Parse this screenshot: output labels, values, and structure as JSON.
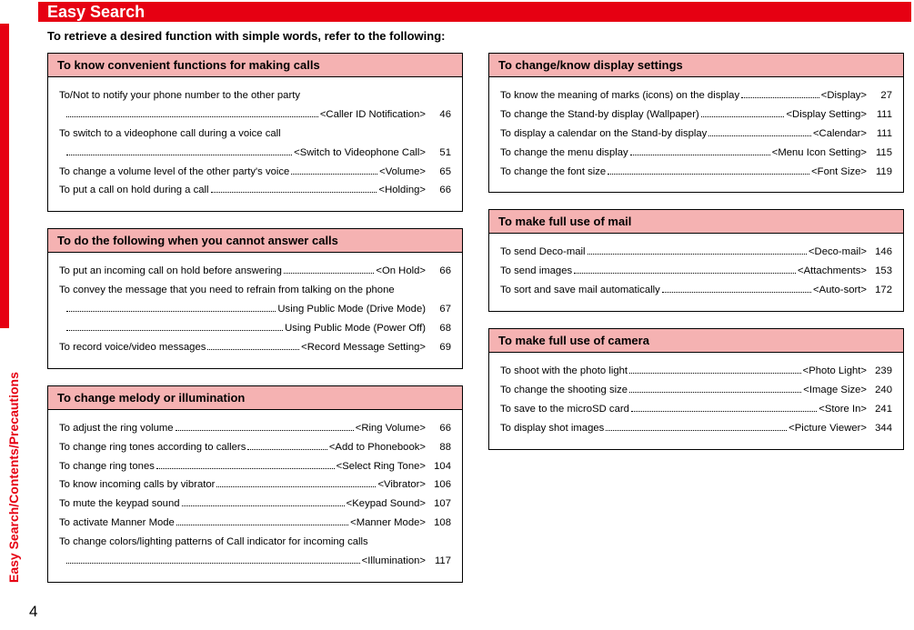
{
  "header": "Easy Search",
  "side_label": "Easy Search/Contents/Precautions",
  "intro": "To retrieve a desired function with simple words, refer to the following:",
  "page_number": "4",
  "colors": {
    "accent_red": "#e60012",
    "section_head_bg": "#f5b2b2",
    "border": "#000000",
    "bg": "#ffffff"
  },
  "sections": {
    "calls": {
      "title": "To know convenient functions for making calls",
      "rows": [
        {
          "text": "To/Not to notify your phone number to the other party",
          "ref": "",
          "page": "",
          "wrap": true
        },
        {
          "text": "",
          "ref": "<Caller ID Notification>",
          "page": "46",
          "cont": true
        },
        {
          "text": "To switch to a videophone call during a voice call",
          "ref": "",
          "page": "",
          "wrap": true
        },
        {
          "text": "",
          "ref": "<Switch to Videophone Call>",
          "page": "51",
          "cont": true
        },
        {
          "text": "To change a volume level of the other party's voice",
          "ref": "<Volume>",
          "page": "65"
        },
        {
          "text": "To put a call on hold during a call",
          "ref": "<Holding>",
          "page": "66"
        }
      ]
    },
    "cannot_answer": {
      "title": "To do the following when you cannot answer calls",
      "rows": [
        {
          "text": "To put an incoming call on hold before answering",
          "ref": "<On Hold>",
          "page": "66"
        },
        {
          "text": "To convey the message that you need to refrain from talking on the phone",
          "ref": "",
          "page": "",
          "wrap": true
        },
        {
          "text": "",
          "ref": "Using Public Mode (Drive Mode)",
          "page": "67",
          "cont": true
        },
        {
          "text": "",
          "ref": "Using Public Mode (Power Off)",
          "page": "68",
          "cont": true
        },
        {
          "text": "To record voice/video messages",
          "ref": "<Record Message Setting>",
          "page": "69"
        }
      ]
    },
    "melody": {
      "title": "To change melody or illumination",
      "rows": [
        {
          "text": "To adjust the ring volume",
          "ref": "<Ring Volume>",
          "page": "66"
        },
        {
          "text": "To change ring tones according to callers",
          "ref": "<Add to Phonebook>",
          "page": "88"
        },
        {
          "text": "To change ring tones",
          "ref": "<Select Ring Tone>",
          "page": "104"
        },
        {
          "text": "To know incoming calls by vibrator",
          "ref": "<Vibrator>",
          "page": "106"
        },
        {
          "text": "To mute the keypad sound",
          "ref": "<Keypad Sound>",
          "page": "107"
        },
        {
          "text": "To activate Manner Mode",
          "ref": "<Manner Mode>",
          "page": "108"
        },
        {
          "text": "To change colors/lighting patterns of Call indicator for incoming calls",
          "ref": "",
          "page": "",
          "wrap": true
        },
        {
          "text": "",
          "ref": "<Illumination>",
          "page": "117",
          "cont": true
        }
      ]
    },
    "display": {
      "title": "To change/know display settings",
      "rows": [
        {
          "text": "To know the meaning of marks (icons) on the display",
          "ref": "<Display>",
          "page": "27"
        },
        {
          "text": "To change the Stand-by display (Wallpaper)",
          "ref": "<Display Setting>",
          "page": "111"
        },
        {
          "text": "To display a calendar on the Stand-by display",
          "ref": "<Calendar>",
          "page": "111"
        },
        {
          "text": "To change the menu display",
          "ref": "<Menu Icon Setting>",
          "page": "115"
        },
        {
          "text": "To change the font size",
          "ref": "<Font Size>",
          "page": "119"
        }
      ]
    },
    "mail": {
      "title": "To make full use of mail",
      "rows": [
        {
          "text": "To send Deco-mail",
          "ref": "<Deco-mail>",
          "page": "146"
        },
        {
          "text": "To send images",
          "ref": "<Attachments>",
          "page": "153"
        },
        {
          "text": "To sort and save mail automatically",
          "ref": "<Auto-sort>",
          "page": "172"
        }
      ]
    },
    "camera": {
      "title": "To make full use of camera",
      "rows": [
        {
          "text": "To shoot with the photo light",
          "ref": "<Photo Light>",
          "page": "239"
        },
        {
          "text": "To change the shooting size",
          "ref": "<Image Size>",
          "page": "240"
        },
        {
          "text": "To save to the microSD card",
          "ref": "<Store In>",
          "page": "241"
        },
        {
          "text": "To display shot images",
          "ref": "<Picture Viewer>",
          "page": "344"
        }
      ]
    }
  }
}
